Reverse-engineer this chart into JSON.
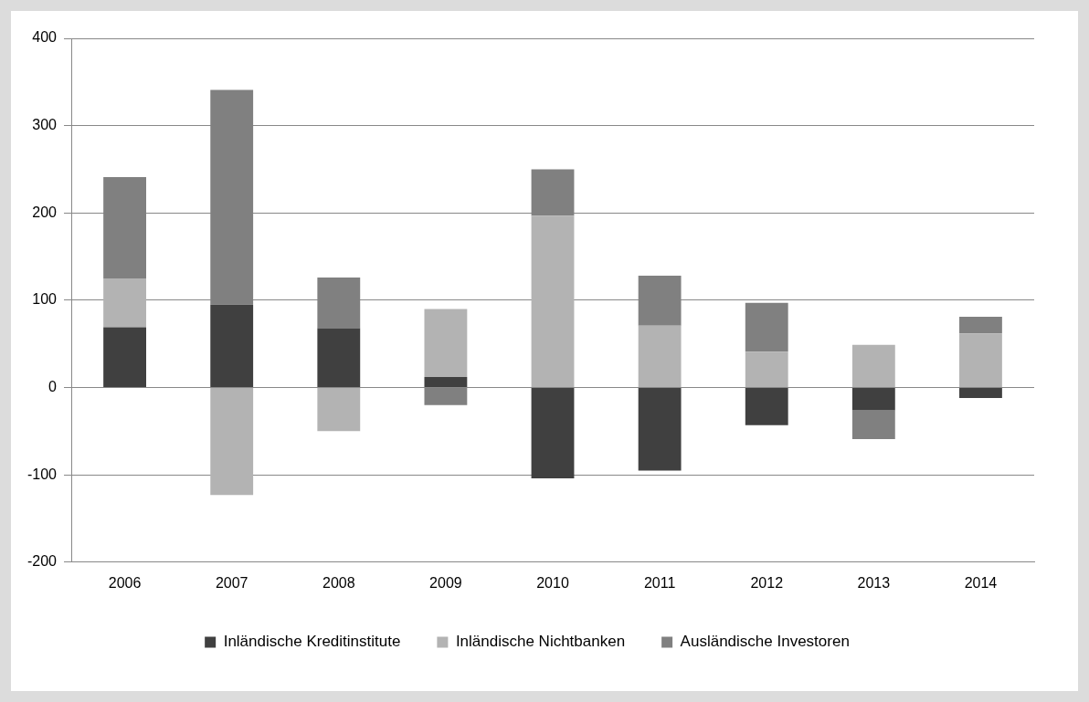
{
  "chart_data": {
    "type": "bar",
    "stacked": true,
    "categories": [
      "2006",
      "2007",
      "2008",
      "2009",
      "2010",
      "2011",
      "2012",
      "2013",
      "2014"
    ],
    "series": [
      {
        "name": "Inländische Kreditinstitute",
        "color": "#404040",
        "values": [
          69,
          95,
          68,
          12,
          -104,
          -95,
          -43,
          -26,
          -12
        ]
      },
      {
        "name": "Inländische Nichtbanken",
        "color": "#b3b3b3",
        "values": [
          56,
          -123,
          -50,
          78,
          197,
          71,
          41,
          49,
          62
        ]
      },
      {
        "name": "Ausländische Investoren",
        "color": "#808080",
        "values": [
          116,
          246,
          58,
          -20,
          53,
          57,
          56,
          -33,
          19
        ]
      }
    ],
    "ylim": [
      -200,
      400
    ],
    "yticks": [
      -200,
      -100,
      0,
      100,
      200,
      300,
      400
    ],
    "grid": "y",
    "legend": "bottom"
  }
}
